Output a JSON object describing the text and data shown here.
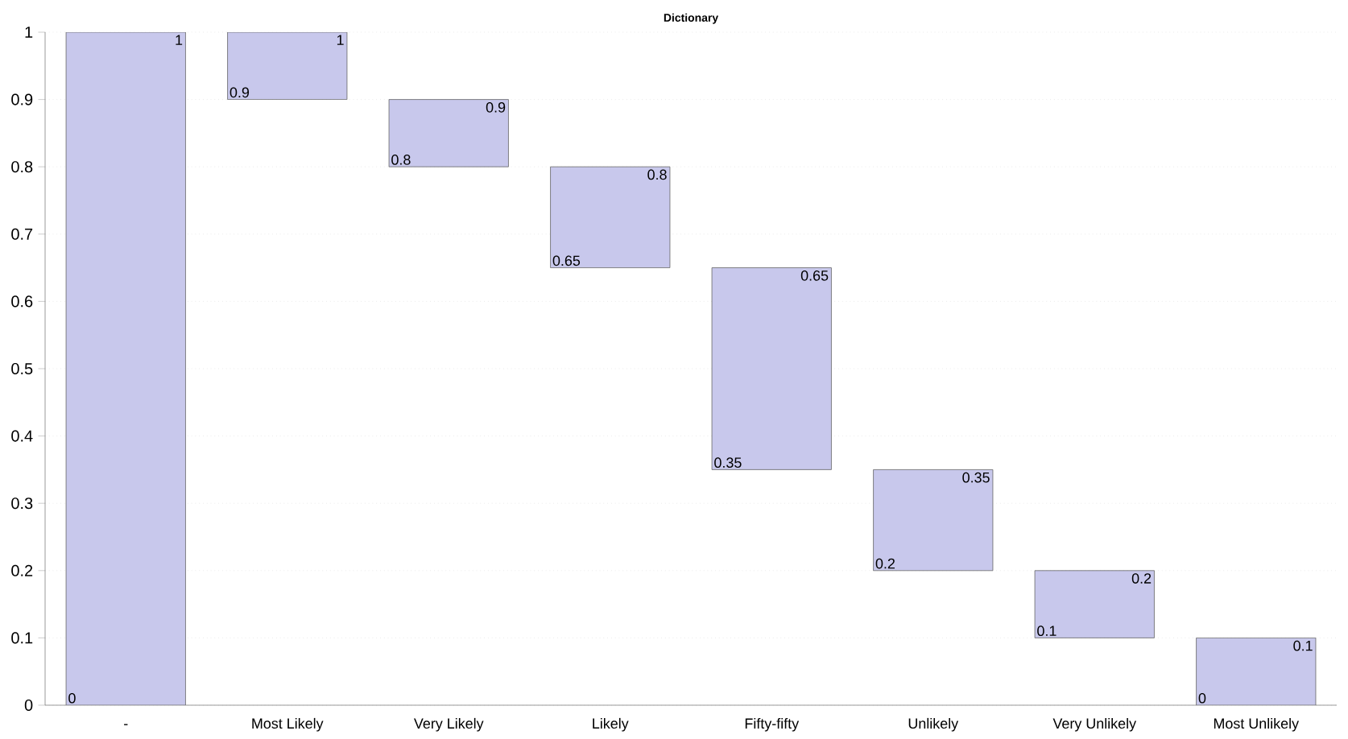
{
  "chart_data": {
    "type": "bar",
    "title": "Dictionary",
    "categories": [
      "-",
      "Most Likely",
      "Very Likely",
      "Likely",
      "Fifty-fifty",
      "Unlikely",
      "Very Unlikely",
      "Most Unlikely"
    ],
    "base": [
      0,
      0.9,
      0.8,
      0.65,
      0.35,
      0.2,
      0.1,
      0
    ],
    "values": [
      1,
      0.1,
      0.1,
      0.15,
      0.3,
      0.15,
      0.1,
      0.1
    ],
    "color": "#c8c8ec",
    "ylim": [
      0,
      1
    ],
    "yticks": [
      0,
      0.1,
      0.2,
      0.3,
      0.4,
      0.5,
      0.6,
      0.7,
      0.8,
      0.9,
      1
    ],
    "grid": "y",
    "annotations": [
      "0",
      "1",
      "0.9",
      "1",
      "0.8",
      "0.9",
      "0.65",
      "0.8",
      "0.35",
      "0.65",
      "0.2",
      "0.35",
      "0.1",
      "0.2",
      "0",
      "0.1"
    ]
  }
}
